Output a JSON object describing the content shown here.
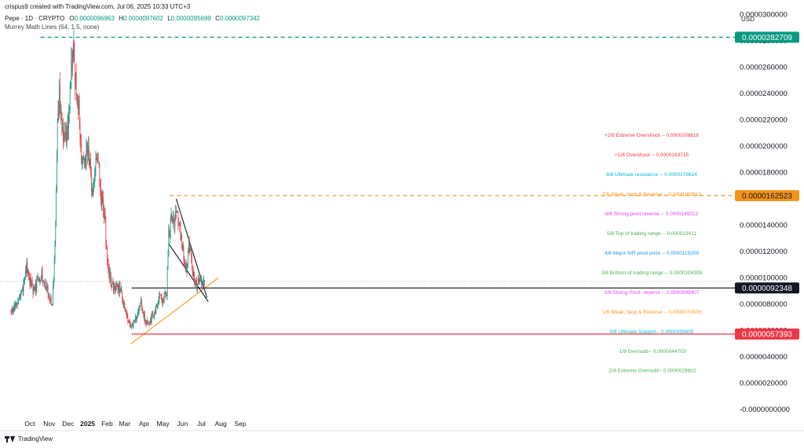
{
  "header": {
    "author_line": "crispus9 created with TradingView.com, Jul 06, 2025 10:33 UTC+3",
    "symbol": "Pepe · 1D · CRYPTO",
    "ohlc": [
      {
        "key": "O",
        "value": "0.0000096963"
      },
      {
        "key": "H",
        "value": "0.0000097602"
      },
      {
        "key": "L",
        "value": "0.0000095699"
      },
      {
        "key": "C",
        "value": "0.0000097342"
      }
    ],
    "indicator": "Murrey Math Lines (64, 1.5, none)",
    "currency": "USD"
  },
  "branding": {
    "logo_text": "TradingView"
  },
  "chart_data": {
    "type": "candlestick",
    "ylim": [
      -1.6e-06,
      3.11e-05
    ],
    "xlim": [
      "2025-09-20",
      "2025-09-30"
    ],
    "y_ticks": [
      "0.0000300000",
      "0.0000280000",
      "0.0000260000",
      "0.0000240000",
      "0.0000220000",
      "0.0000200000",
      "0.0000180000",
      "0.0000160000",
      "0.0000140000",
      "0.0000120000",
      "0.0000100000",
      "0.0000080000",
      "0.0000060000",
      "0.0000040000",
      "0.0000020000",
      "-0.0000000000"
    ],
    "y_tick_values": [
      3e-05,
      2.8e-05,
      2.6e-05,
      2.4e-05,
      2.2e-05,
      2e-05,
      1.8e-05,
      1.6e-05,
      1.4e-05,
      1.2e-05,
      1e-05,
      8e-06,
      6e-06,
      4e-06,
      2e-06,
      0
    ],
    "x_ticks": [
      {
        "label": "Oct",
        "date": "2024-10-01",
        "bold": false
      },
      {
        "label": "Nov",
        "date": "2024-11-01",
        "bold": false
      },
      {
        "label": "Dec",
        "date": "2024-12-01",
        "bold": false
      },
      {
        "label": "2025",
        "date": "2025-01-01",
        "bold": true
      },
      {
        "label": "Feb",
        "date": "2025-02-01",
        "bold": false
      },
      {
        "label": "Mar",
        "date": "2025-03-01",
        "bold": false
      },
      {
        "label": "Apr",
        "date": "2025-04-01",
        "bold": false
      },
      {
        "label": "May",
        "date": "2025-05-01",
        "bold": false
      },
      {
        "label": "Jun",
        "date": "2025-06-01",
        "bold": false
      },
      {
        "label": "Jul",
        "date": "2025-07-01",
        "bold": false
      },
      {
        "label": "Aug",
        "date": "2025-08-01",
        "bold": false
      },
      {
        "label": "Sep",
        "date": "2025-09-01",
        "bold": false
      }
    ],
    "price_anchors": [
      [
        "2024-09-01",
        7.5e-06
      ],
      [
        "2024-09-08",
        7.8e-06
      ],
      [
        "2024-09-18",
        8.8e-06
      ],
      [
        "2024-09-26",
        1.08e-05
      ],
      [
        "2024-10-02",
        9.5e-06
      ],
      [
        "2024-10-08",
        9e-06
      ],
      [
        "2024-10-14",
        9.8e-06
      ],
      [
        "2024-10-20",
        1.02e-05
      ],
      [
        "2024-10-26",
        9.5e-06
      ],
      [
        "2024-11-01",
        8.5e-06
      ],
      [
        "2024-11-06",
        8e-06
      ],
      [
        "2024-11-10",
        1.25e-05
      ],
      [
        "2024-11-14",
        2.15e-05
      ],
      [
        "2024-11-17",
        2.4e-05
      ],
      [
        "2024-11-22",
        2.1e-05
      ],
      [
        "2024-11-28",
        2.05e-05
      ],
      [
        "2024-12-04",
        2.4e-05
      ],
      [
        "2024-12-09",
        2.75e-05
      ],
      [
        "2024-12-13",
        2.5e-05
      ],
      [
        "2024-12-18",
        2.3e-05
      ],
      [
        "2024-12-22",
        1.95e-05
      ],
      [
        "2024-12-27",
        1.9e-05
      ],
      [
        "2025-01-02",
        2.05e-05
      ],
      [
        "2025-01-07",
        1.65e-05
      ],
      [
        "2025-01-12",
        1.75e-05
      ],
      [
        "2025-01-17",
        1.95e-05
      ],
      [
        "2025-01-22",
        1.65e-05
      ],
      [
        "2025-01-28",
        1.45e-05
      ],
      [
        "2025-02-02",
        1.08e-05
      ],
      [
        "2025-02-08",
        9.5e-06
      ],
      [
        "2025-02-15",
        9.2e-06
      ],
      [
        "2025-02-22",
        9.3e-06
      ],
      [
        "2025-02-28",
        8e-06
      ],
      [
        "2025-03-06",
        6.8e-06
      ],
      [
        "2025-03-11",
        6.2e-06
      ],
      [
        "2025-03-16",
        6.6e-06
      ],
      [
        "2025-03-22",
        7.4e-06
      ],
      [
        "2025-03-26",
        8.2e-06
      ],
      [
        "2025-04-02",
        6.8e-06
      ],
      [
        "2025-04-08",
        6.3e-06
      ],
      [
        "2025-04-13",
        7e-06
      ],
      [
        "2025-04-20",
        7.7e-06
      ],
      [
        "2025-04-25",
        8.8e-06
      ],
      [
        "2025-04-30",
        8.4e-06
      ],
      [
        "2025-05-07",
        9e-06
      ],
      [
        "2025-05-10",
        1.35e-05
      ],
      [
        "2025-05-13",
        1.42e-05
      ],
      [
        "2025-05-19",
        1.4e-05
      ],
      [
        "2025-05-22",
        1.51e-05
      ],
      [
        "2025-05-27",
        1.38e-05
      ],
      [
        "2025-06-02",
        1.18e-05
      ],
      [
        "2025-06-07",
        1.05e-05
      ],
      [
        "2025-06-11",
        1.26e-05
      ],
      [
        "2025-06-16",
        1.1e-05
      ],
      [
        "2025-06-20",
        9.8e-06
      ],
      [
        "2025-06-24",
        9.4e-06
      ],
      [
        "2025-06-28",
        1e-05
      ],
      [
        "2025-07-02",
        9.6e-06
      ],
      [
        "2025-07-06",
        9.7342e-06
      ]
    ],
    "horizontal_lines": [
      {
        "name": "ath-line",
        "value": 2.82709e-05,
        "label": "0.0000282709",
        "color": "#089981",
        "style": "dashed",
        "start": "2024-10-18"
      },
      {
        "name": "resistance-line",
        "value": 1.62523e-05,
        "label": "0.0000162523",
        "color": "#f7931a",
        "style": "dashed",
        "start": "2025-05-12"
      },
      {
        "name": "neckline",
        "value": 9.2348e-06,
        "label": "0.0000092348",
        "color": "#131722",
        "style": "solid",
        "start": "2025-03-12"
      },
      {
        "name": "support-line",
        "value": 5.7393e-06,
        "label": "0.0000057393",
        "color": "#f23645",
        "style": "solid",
        "start": "2025-03-12"
      }
    ],
    "last_price": {
      "value": 9.7342e-06,
      "color": "#9598a1"
    },
    "trend_lines": [
      {
        "name": "ascending-trendline",
        "color": "#f7931a",
        "from": [
          "2025-03-11",
          5e-06
        ],
        "to": [
          "2025-07-28",
          1e-05
        ]
      },
      {
        "name": "wedge-upper-line",
        "color": "#131722",
        "from": [
          "2025-05-22",
          1.6e-05
        ],
        "to": [
          "2025-07-10",
          8.5e-06
        ]
      },
      {
        "name": "wedge-lower-line",
        "color": "#131722",
        "from": [
          "2025-05-10",
          1.26e-05
        ],
        "to": [
          "2025-07-12",
          8.2e-06
        ]
      }
    ],
    "murrey_lines": [
      {
        "text": "+2/8 Extreme Overshoot --  0.0000208616",
        "value": 2.08616e-05,
        "color": "#f23645"
      },
      {
        "text": "+1/8 Overshoot --  0.0000193715",
        "value": 1.93715e-05,
        "color": "#f23645"
      },
      {
        "text": "8/8 Ultimate resistance --  0.0000178814",
        "value": 1.78814e-05,
        "color": "#00bcd4"
      },
      {
        "text": "7/8 Weak, Stop & Reverse --  0.0000163913",
        "value": 1.63913e-05,
        "color": "#f7931a"
      },
      {
        "text": "6/8 Strong pivot reverse --  0.0000149012",
        "value": 1.49012e-05,
        "color": "#e040fb"
      },
      {
        "text": "5/8 Top of trading range --  0.000013411",
        "value": 1.3411e-05,
        "color": "#4caf50"
      },
      {
        "text": "4/8 Major S/R pivot point --  0.0000119209",
        "value": 1.19209e-05,
        "color": "#2196f3"
      },
      {
        "text": "3/8 Bottom of trading range --  0.0000104308",
        "value": 1.04308e-05,
        "color": "#4caf50"
      },
      {
        "text": "2/8 Strong Pivot, reverse --  0.0000089407",
        "value": 8.9407e-06,
        "color": "#e040fb"
      },
      {
        "text": "1/8 Weak, Stop & Reverse --  0.0000074506",
        "value": 7.4506e-06,
        "color": "#f7931a"
      },
      {
        "text": "0/8 Ultimate Support--  0.0000059605",
        "value": 5.9605e-06,
        "color": "#00bcd4"
      },
      {
        "text": "-1/8 Oversold--  0.0000044703",
        "value": 4.4703e-06,
        "color": "#4caf50"
      },
      {
        "text": "-2/8 Extreme Oversold--  0.0000029802",
        "value": 2.9802e-06,
        "color": "#4caf50"
      }
    ],
    "colors": {
      "up": "#089981",
      "down": "#f23645",
      "axis_text": "#131722"
    }
  }
}
